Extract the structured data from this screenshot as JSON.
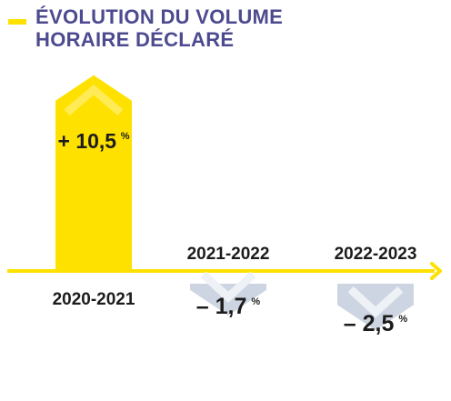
{
  "title_lines": [
    "ÉVOLUTION DU VOLUME",
    "HORAIRE DÉCLARÉ"
  ],
  "colors": {
    "title": "#4d4a8f",
    "positive": "#ffe100",
    "positive_chevron": "#ffeb55",
    "negative": "#ccd5e1",
    "negative_chevron": "#eef1f6",
    "axis": "#ffe100",
    "text": "#1c1c1c"
  },
  "chart_data": {
    "type": "bar",
    "title": "ÉVOLUTION DU VOLUME HORAIRE DÉCLARÉ",
    "categories": [
      "2020-2021",
      "2021-2022",
      "2022-2023"
    ],
    "values": [
      10.5,
      -1.7,
      -2.5
    ],
    "value_labels": [
      {
        "main": "+ 10,5",
        "unit": "%"
      },
      {
        "main": "– 1,7",
        "unit": "%"
      },
      {
        "main": "– 2,5",
        "unit": "%"
      }
    ],
    "unit": "%",
    "xlabel": "",
    "ylabel": "",
    "grid": false,
    "legend": "top-left"
  }
}
